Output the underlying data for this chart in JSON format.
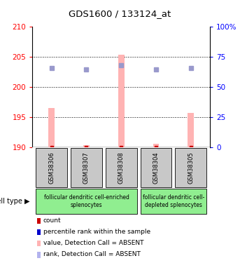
{
  "title": "GDS1600 / 133124_at",
  "samples": [
    "GSM38306",
    "GSM38307",
    "GSM38308",
    "GSM38304",
    "GSM38305"
  ],
  "bar_values": [
    196.5,
    190.3,
    205.3,
    190.6,
    195.7
  ],
  "bar_bottom": 190,
  "rank_values": [
    203.1,
    202.9,
    203.6,
    202.9,
    203.1
  ],
  "left_ylim": [
    190,
    210
  ],
  "right_ylim": [
    0,
    100
  ],
  "left_yticks": [
    190,
    195,
    200,
    205,
    210
  ],
  "right_yticks": [
    0,
    25,
    50,
    75,
    100
  ],
  "right_yticklabels": [
    "0",
    "25",
    "50",
    "75",
    "100%"
  ],
  "dotted_lines": [
    195,
    200,
    205
  ],
  "bar_color": "#ffb3b3",
  "rank_color": "#9999cc",
  "group1_samples_idx": [
    0,
    1,
    2
  ],
  "group2_samples_idx": [
    3,
    4
  ],
  "group1_label": "follicular dendritic cell-enriched\nsplenocytes",
  "group2_label": "follicular dendritic cell-\ndepleted splenocytes",
  "group_color": "#90ee90",
  "sample_box_color": "#c8c8c8",
  "cell_type_label": "cell type",
  "legend_items": [
    {
      "color": "#cc0000",
      "label": "count"
    },
    {
      "color": "#0000cc",
      "label": "percentile rank within the sample"
    },
    {
      "color": "#ffb3b3",
      "label": "value, Detection Call = ABSENT"
    },
    {
      "color": "#b3b3ee",
      "label": "rank, Detection Call = ABSENT"
    }
  ]
}
